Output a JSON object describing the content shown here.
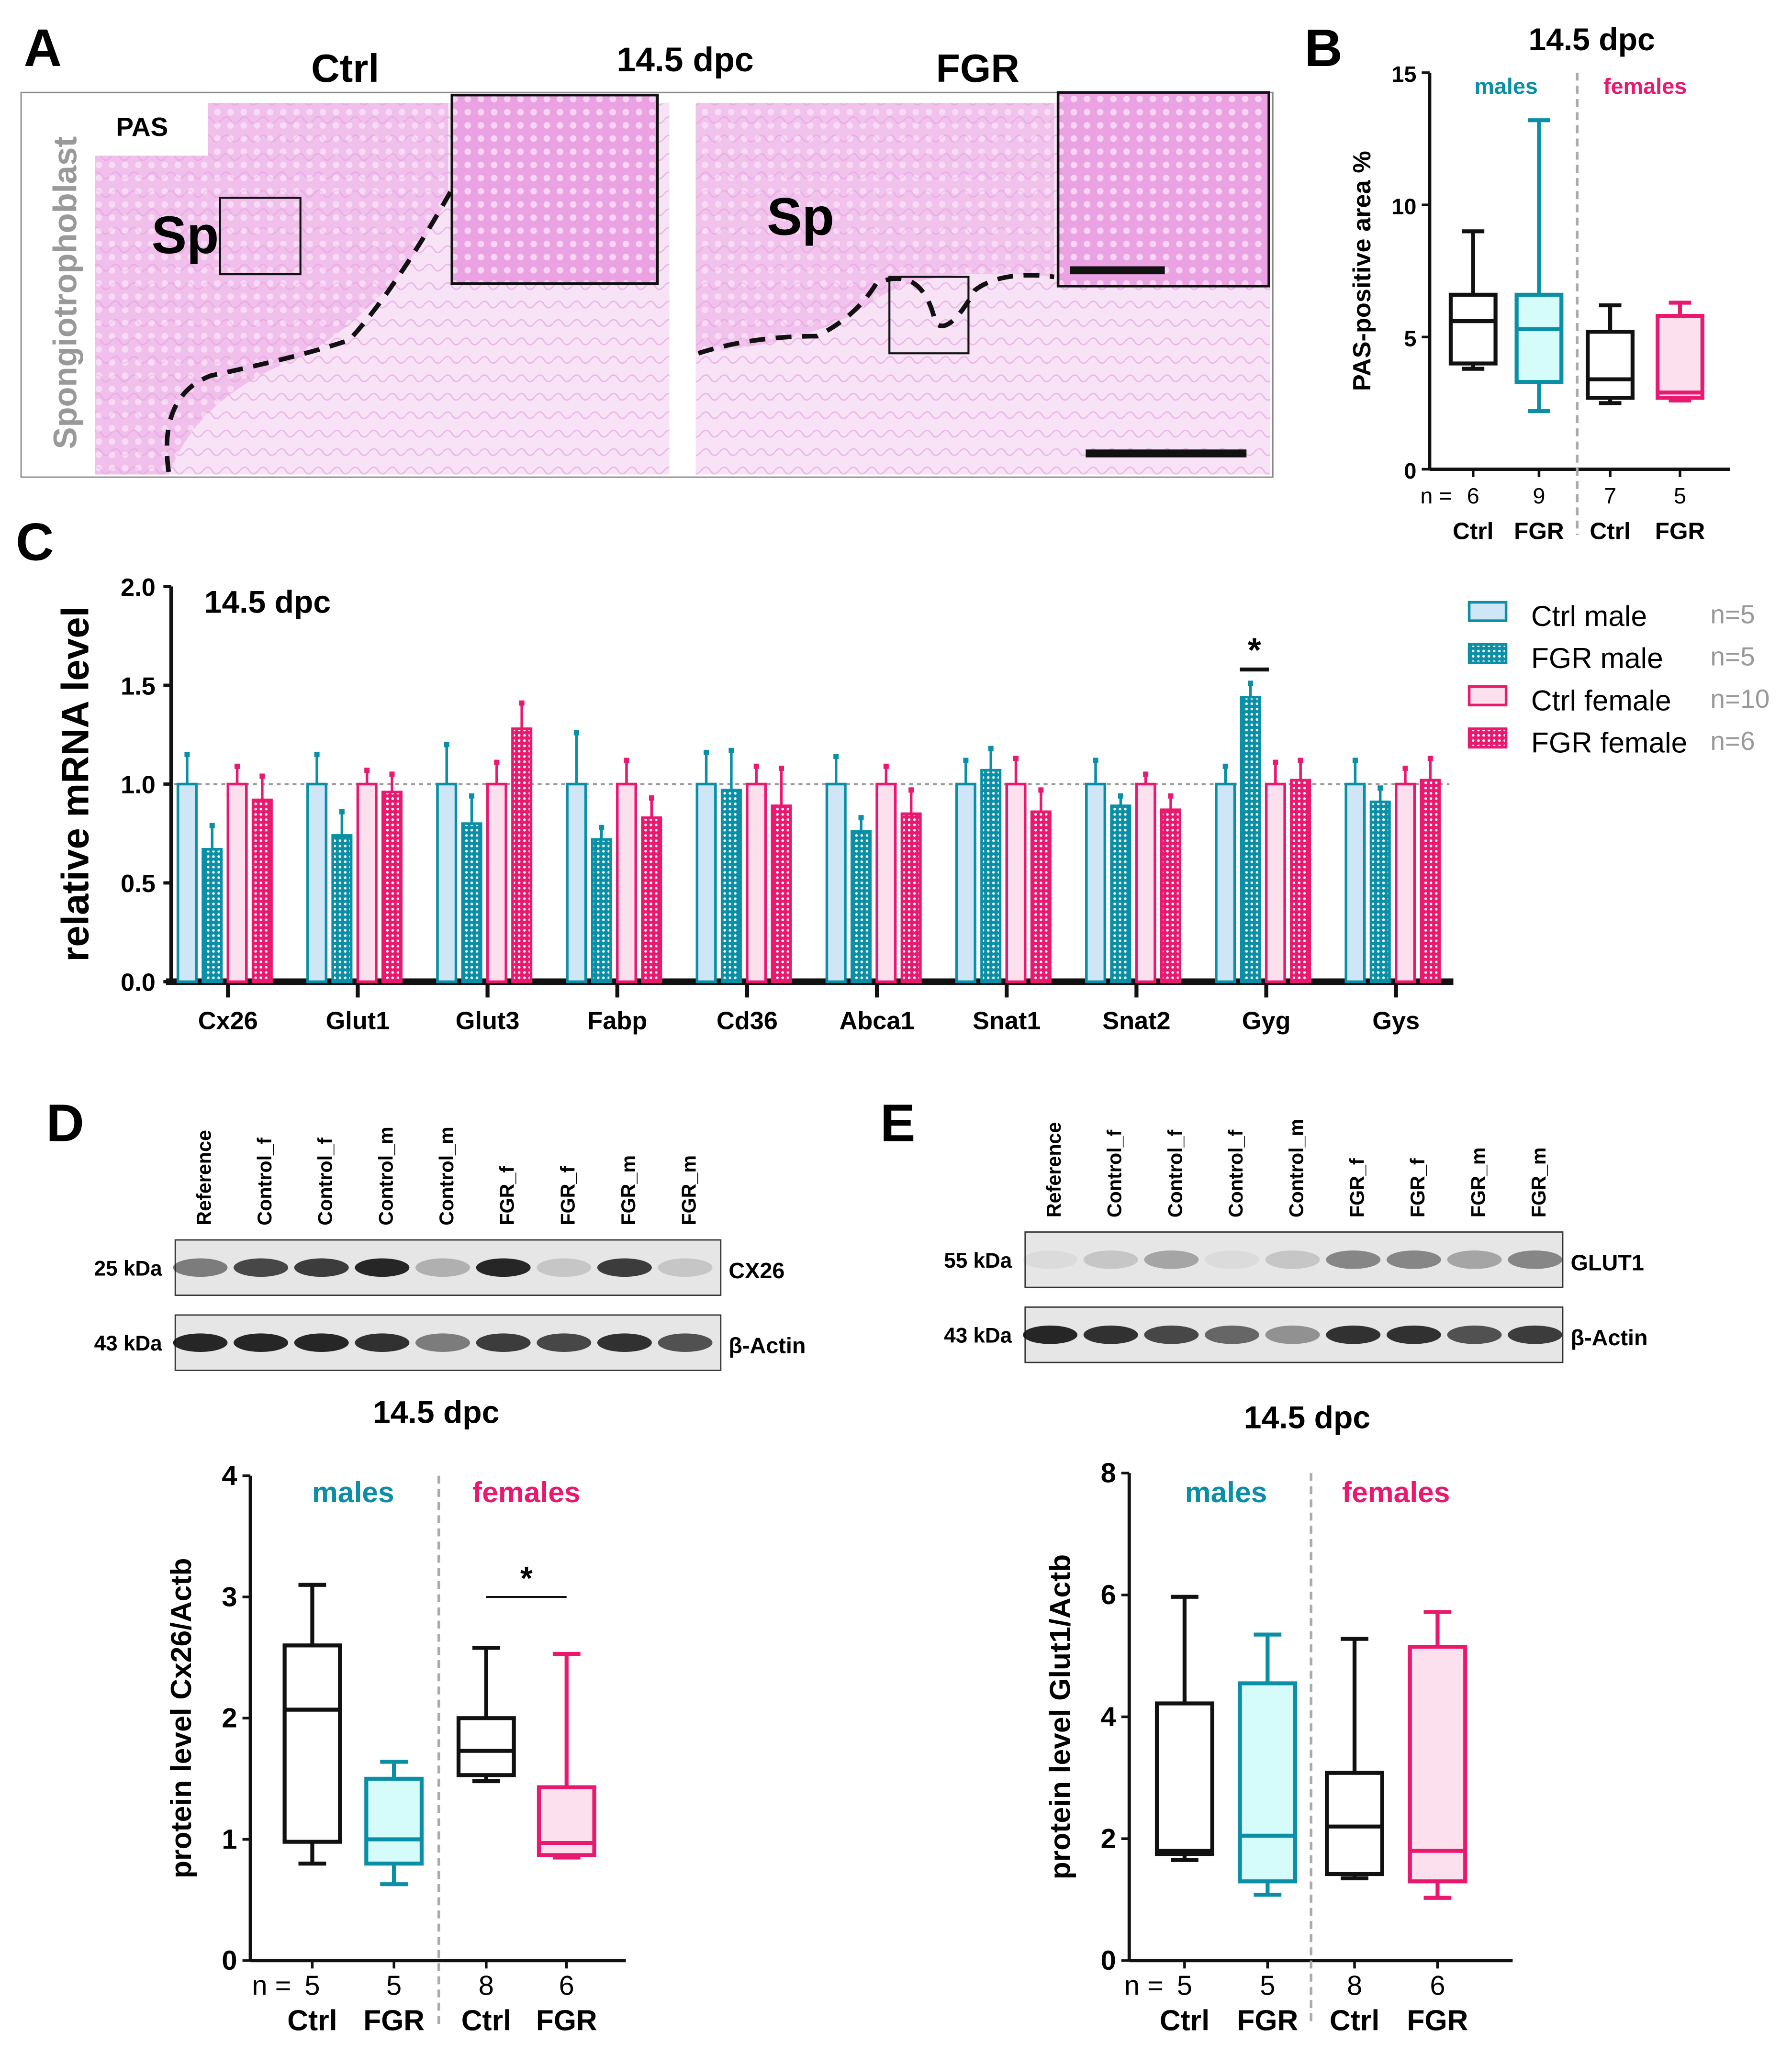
{
  "colors": {
    "male": "#0a8fa6",
    "female": "#e8196e",
    "male_ctrl_fill": "#cfe6f6",
    "male_fgr_fill": "#d6fbfb",
    "female_fill": "#fde0ee",
    "tissue": "#f3c9ee"
  },
  "panelA": {
    "letter": "A",
    "ctrl_label": "Ctrl",
    "time_label": "14.5 dpc",
    "fgr_label": "FGR",
    "stain_label": "PAS",
    "side_label": "Spongiotrophoblast",
    "region_label": "Sp"
  },
  "panelB": {
    "letter": "B",
    "chart_data": {
      "type": "box",
      "title": "14.5 dpc",
      "ylabel": "PAS-positive area %",
      "ylim": [
        0,
        15
      ],
      "yticks": [
        0,
        5,
        10,
        15
      ],
      "group_labels": [
        "males",
        "females"
      ],
      "n_prefix": "n =",
      "boxes": [
        {
          "label": "Ctrl",
          "n": "6",
          "sex": "male",
          "min": 3.8,
          "q1": 4.0,
          "median": 5.6,
          "q3": 6.6,
          "max": 9.0
        },
        {
          "label": "FGR",
          "n": "9",
          "sex": "male",
          "min": 2.2,
          "q1": 3.3,
          "median": 5.3,
          "q3": 6.6,
          "max": 13.2
        },
        {
          "label": "Ctrl",
          "n": "7",
          "sex": "female",
          "min": 2.5,
          "q1": 2.7,
          "median": 3.4,
          "q3": 5.2,
          "max": 6.2
        },
        {
          "label": "FGR",
          "n": "5",
          "sex": "female",
          "min": 2.6,
          "q1": 2.7,
          "median": 2.9,
          "q3": 5.8,
          "max": 6.3
        }
      ]
    }
  },
  "panelC": {
    "letter": "C",
    "chart_data": {
      "type": "bar",
      "title": "14.5 dpc",
      "ylabel": "relative mRNA level",
      "ylim": [
        0,
        2.0
      ],
      "yticks": [
        "0.0",
        "0.5",
        "1.0",
        "1.5",
        "2.0"
      ],
      "categories": [
        "Cx26",
        "Glut1",
        "Glut3",
        "Fabp",
        "Cd36",
        "Abca1",
        "Snat1",
        "Snat2",
        "Gyg",
        "Gys"
      ],
      "series": [
        {
          "name": "Ctrl male",
          "n": "n=5",
          "values": [
            1,
            1,
            1,
            1,
            1,
            1,
            1,
            1,
            1,
            1
          ],
          "err_top": [
            1.15,
            1.15,
            1.2,
            1.26,
            1.16,
            1.14,
            1.12,
            1.12,
            1.09,
            1.12
          ]
        },
        {
          "name": "FGR male",
          "n": "n=5",
          "values": [
            0.67,
            0.74,
            0.8,
            0.72,
            0.97,
            0.76,
            1.07,
            0.89,
            1.44,
            0.91
          ],
          "err_top": [
            0.79,
            0.86,
            0.94,
            0.78,
            1.17,
            0.83,
            1.18,
            0.94,
            1.51,
            0.98
          ]
        },
        {
          "name": "Ctrl female",
          "n": "n=10",
          "values": [
            1,
            1,
            1,
            1,
            1,
            1,
            1,
            1,
            1,
            1
          ],
          "err_top": [
            1.09,
            1.07,
            1.11,
            1.12,
            1.09,
            1.09,
            1.13,
            1.05,
            1.11,
            1.08
          ]
        },
        {
          "name": "FGR female",
          "n": "n=6",
          "values": [
            0.92,
            0.96,
            1.28,
            0.83,
            0.89,
            0.85,
            0.86,
            0.87,
            1.02,
            1.02
          ],
          "err_top": [
            1.04,
            1.05,
            1.41,
            0.93,
            1.08,
            0.97,
            0.97,
            0.94,
            1.12,
            1.13
          ]
        }
      ],
      "significance": [
        {
          "category": "Gyg",
          "label": "*"
        }
      ],
      "reference_line": 1.0,
      "legend": "right"
    }
  },
  "panelD": {
    "letter": "D",
    "lanes": [
      "Reference",
      "Control_f",
      "Control_f",
      "Control_m",
      "Control_m",
      "FGR_f",
      "FGR_f",
      "FGR_m",
      "FGR_m"
    ],
    "blots": [
      {
        "kda": "25 kDa",
        "protein": "CX26",
        "intensity": [
          0.5,
          0.75,
          0.8,
          0.9,
          0.25,
          0.9,
          0.15,
          0.8,
          0.15
        ]
      },
      {
        "kda": "43 kDa",
        "protein": "β-Actin",
        "intensity": [
          0.9,
          0.9,
          0.9,
          0.85,
          0.5,
          0.8,
          0.75,
          0.85,
          0.7
        ]
      }
    ],
    "chart_data": {
      "type": "box",
      "title": "14.5 dpc",
      "ylabel": "protein level Cx26/Actb",
      "ylim": [
        0,
        4
      ],
      "yticks": [
        0,
        1,
        2,
        3,
        4
      ],
      "group_labels": [
        "males",
        "females"
      ],
      "n_prefix": "n =",
      "significance": "*",
      "boxes": [
        {
          "label": "Ctrl",
          "n": "5",
          "sex": "male",
          "min": 0.8,
          "q1": 0.98,
          "median": 2.07,
          "q3": 2.6,
          "max": 3.1
        },
        {
          "label": "FGR",
          "n": "5",
          "sex": "male",
          "min": 0.63,
          "q1": 0.8,
          "median": 1.0,
          "q3": 1.5,
          "max": 1.64
        },
        {
          "label": "Ctrl",
          "n": "8",
          "sex": "female",
          "min": 1.48,
          "q1": 1.53,
          "median": 1.73,
          "q3": 2.0,
          "max": 2.58
        },
        {
          "label": "FGR",
          "n": "6",
          "sex": "female",
          "min": 0.85,
          "q1": 0.87,
          "median": 0.97,
          "q3": 1.43,
          "max": 2.53
        }
      ]
    }
  },
  "panelE": {
    "letter": "E",
    "lanes": [
      "Reference",
      "Control_f",
      "Control_f",
      "Control_f",
      "Control_m",
      "FGR_f",
      "FGR_f",
      "FGR_m",
      "FGR_m"
    ],
    "blots": [
      {
        "kda": "55 kDa",
        "protein": "GLUT1",
        "intensity": [
          0.05,
          0.15,
          0.3,
          0.05,
          0.15,
          0.45,
          0.45,
          0.3,
          0.45
        ]
      },
      {
        "kda": "43 kDa",
        "protein": "β-Actin",
        "intensity": [
          0.9,
          0.85,
          0.75,
          0.6,
          0.4,
          0.85,
          0.85,
          0.7,
          0.8
        ]
      }
    ],
    "chart_data": {
      "type": "box",
      "title": "14.5 dpc",
      "ylabel": "protein level Glut1/Actb",
      "ylim": [
        0,
        8
      ],
      "yticks": [
        0,
        2,
        4,
        6,
        8
      ],
      "group_labels": [
        "males",
        "females"
      ],
      "n_prefix": "n =",
      "boxes": [
        {
          "label": "Ctrl",
          "n": "5",
          "sex": "male",
          "min": 1.65,
          "q1": 1.75,
          "median": 1.8,
          "q3": 4.22,
          "max": 5.97
        },
        {
          "label": "FGR",
          "n": "5",
          "sex": "male",
          "min": 1.08,
          "q1": 1.3,
          "median": 2.05,
          "q3": 4.55,
          "max": 5.35
        },
        {
          "label": "Ctrl",
          "n": "8",
          "sex": "female",
          "min": 1.35,
          "q1": 1.42,
          "median": 2.2,
          "q3": 3.08,
          "max": 5.28
        },
        {
          "label": "FGR",
          "n": "6",
          "sex": "female",
          "min": 1.03,
          "q1": 1.3,
          "median": 1.8,
          "q3": 5.15,
          "max": 5.72
        }
      ]
    }
  }
}
